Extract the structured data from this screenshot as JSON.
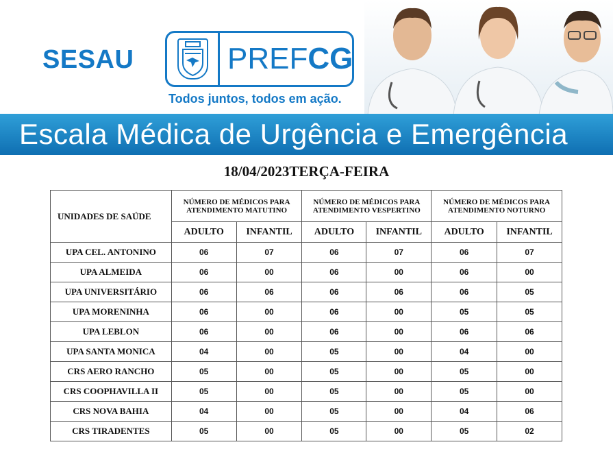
{
  "header": {
    "brand_left": "SESAU",
    "brand_right_prefix": "PREF",
    "brand_right_suffix": "CG",
    "slogan": "Todos juntos, todos em ação.",
    "banner_title": "Escala Médica de Urgência e Emergência",
    "brand_color": "#1479c6",
    "banner_color": "#1a82c4"
  },
  "date_line": "18/04/2023TERÇA-FEIRA",
  "table": {
    "unit_header": "UNIDADES DE SAÚDE",
    "groups": [
      "NÚMERO DE MÉDICOS PARA ATENDIMENTO MATUTINO",
      "NÚMERO DE MÉDICOS PARA ATENDIMENTO VESPERTINO",
      "NÚMERO DE MÉDICOS PARA ATENDIMENTO NOTURNO"
    ],
    "sub_headers": [
      "ADULTO",
      "INFANTIL"
    ],
    "rows": [
      {
        "unit": "UPA CEL. ANTONINO",
        "values": [
          "06",
          "07",
          "06",
          "07",
          "06",
          "07"
        ]
      },
      {
        "unit": "UPA ALMEIDA",
        "values": [
          "06",
          "00",
          "06",
          "00",
          "06",
          "00"
        ]
      },
      {
        "unit": "UPA UNIVERSITÁRIO",
        "values": [
          "06",
          "06",
          "06",
          "06",
          "06",
          "05"
        ]
      },
      {
        "unit": "UPA MORENINHA",
        "values": [
          "06",
          "00",
          "06",
          "00",
          "05",
          "05"
        ]
      },
      {
        "unit": "UPA LEBLON",
        "values": [
          "06",
          "00",
          "06",
          "00",
          "06",
          "06"
        ]
      },
      {
        "unit": "UPA SANTA MONICA",
        "values": [
          "04",
          "00",
          "05",
          "00",
          "04",
          "00"
        ]
      },
      {
        "unit": "CRS AERO RANCHO",
        "values": [
          "05",
          "00",
          "05",
          "00",
          "05",
          "00"
        ]
      },
      {
        "unit": "CRS COOPHAVILLA II",
        "values": [
          "05",
          "00",
          "05",
          "00",
          "05",
          "00"
        ]
      },
      {
        "unit": "CRS NOVA BAHIA",
        "values": [
          "04",
          "00",
          "05",
          "00",
          "04",
          "06"
        ]
      },
      {
        "unit": "CRS TIRADENTES",
        "values": [
          "05",
          "00",
          "05",
          "00",
          "05",
          "02"
        ]
      }
    ]
  }
}
